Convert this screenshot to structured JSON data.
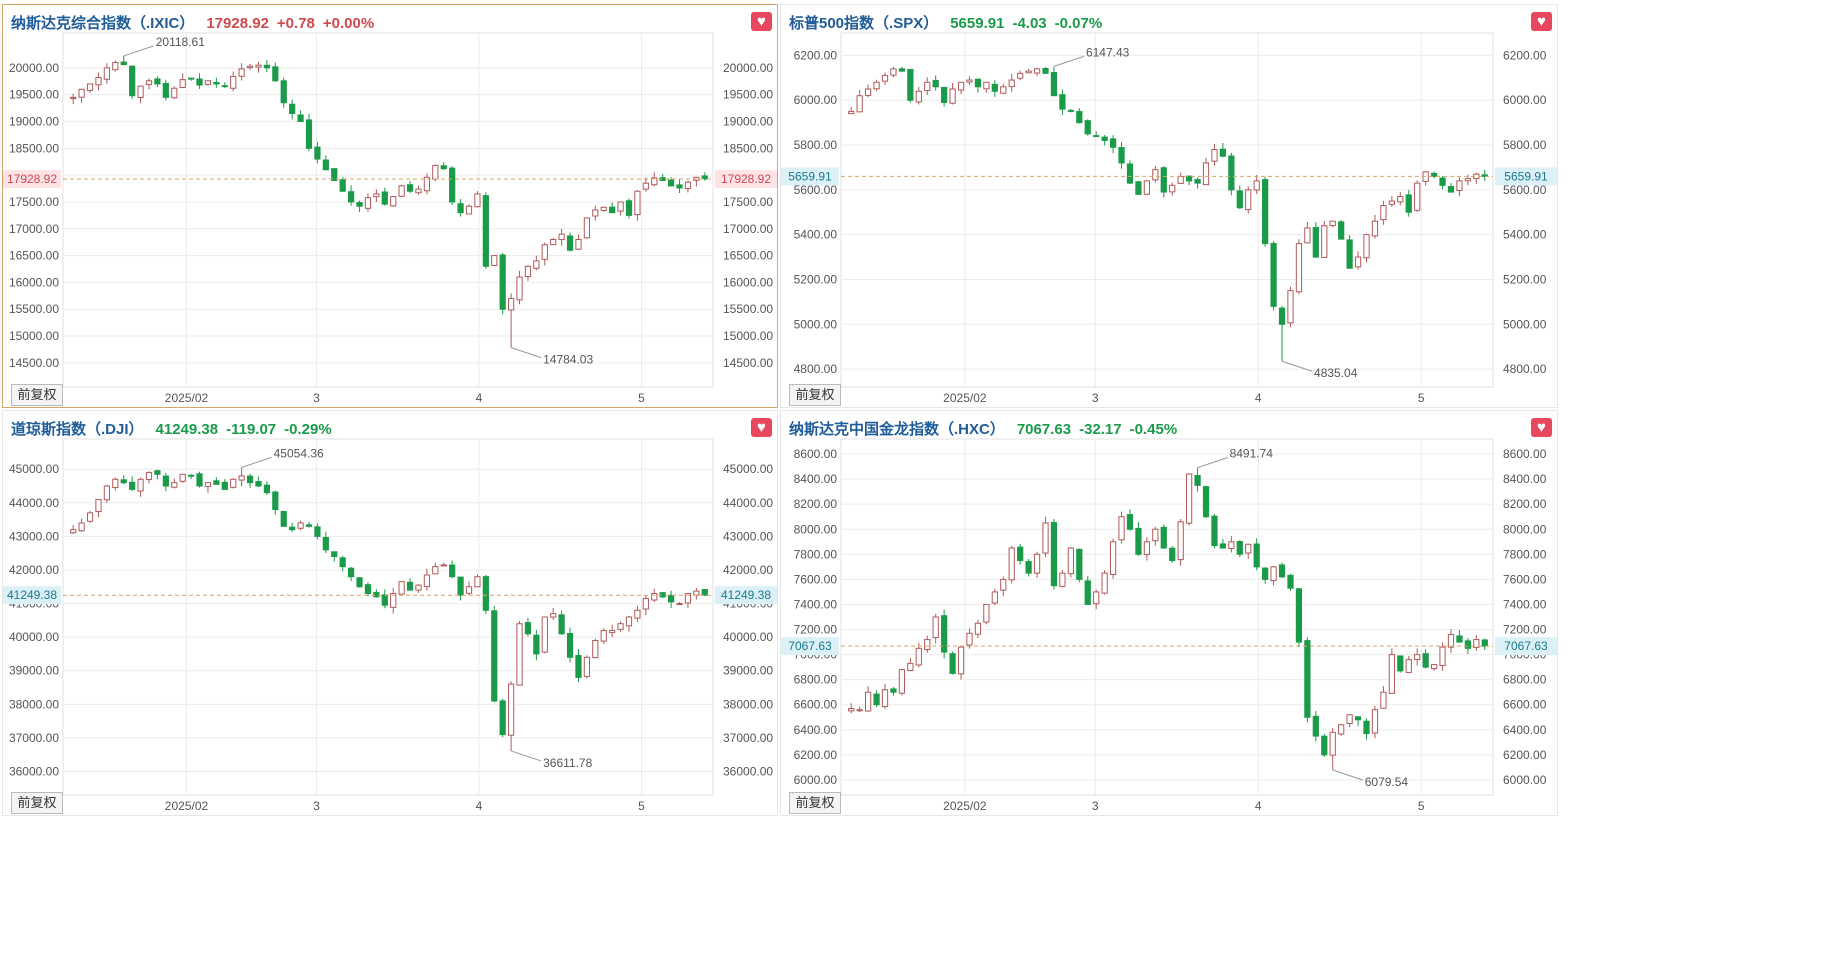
{
  "adjust_label": "前复权",
  "colors": {
    "up": "#d0494e",
    "down": "#1a9b49",
    "up_candle_border": "#b05a5a",
    "grid": "#ececec",
    "lastline": "#d9a46a"
  },
  "icons": {
    "favorite": "heart-icon"
  },
  "panels": [
    {
      "title": "纳斯达克综合指数（.IXIC）",
      "last": "17928.92",
      "change": "+0.78",
      "pct": "+0.00%",
      "direction": "up",
      "chart_data": {
        "type": "candlestick",
        "x_ticks": [
          "2025/02",
          "3",
          "4",
          "5"
        ],
        "y_ticks": [
          "20000.00",
          "19500.00",
          "19000.00",
          "18500.00",
          "18000.00",
          "17500.00",
          "17000.00",
          "16500.00",
          "16000.00",
          "15500.00",
          "15000.00",
          "14500.00"
        ],
        "last_label": "17928.92",
        "ylim": [
          14050,
          20650
        ],
        "high_label": "20118.61",
        "low_label": "14784.03",
        "closes": [
          19450,
          19600,
          19700,
          19820,
          20000,
          20100,
          20060,
          19480,
          19660,
          19760,
          19700,
          19450,
          19620,
          19780,
          19800,
          19680,
          19760,
          19700,
          19650,
          19840,
          19980,
          20030,
          20050,
          20000,
          19760,
          19350,
          19150,
          19000,
          18500,
          18300,
          18100,
          17900,
          17700,
          17500,
          17420,
          17580,
          17650,
          17460,
          17600,
          17800,
          17700,
          17740,
          17960,
          18180,
          18120,
          17500,
          17300,
          17420,
          17650,
          16300,
          16500,
          15500,
          15700,
          16100,
          16300,
          16400,
          16700,
          16800,
          16900,
          16600,
          16800,
          17200,
          17350,
          17400,
          17300,
          17500,
          17250,
          17700,
          17850,
          17950,
          17900,
          17800,
          17760,
          17870,
          17960,
          17928.92
        ]
      }
    },
    {
      "title": "标普500指数（.SPX）",
      "last": "5659.91",
      "change": "-4.03",
      "pct": "-0.07%",
      "direction": "down",
      "chart_data": {
        "type": "candlestick",
        "x_ticks": [
          "2025/02",
          "3",
          "4",
          "5"
        ],
        "y_ticks": [
          "6200.00",
          "6000.00",
          "5800.00",
          "5600.00",
          "5400.00",
          "5200.00",
          "5000.00",
          "4800.00"
        ],
        "last_label": "5659.91",
        "ylim": [
          4720,
          6300
        ],
        "high_label": "6147.43",
        "low_label": "4835.04",
        "closes": [
          5950,
          6020,
          6050,
          6080,
          6110,
          6140,
          6130,
          6000,
          6040,
          6080,
          6060,
          5990,
          6050,
          6080,
          6090,
          6060,
          6080,
          6040,
          6060,
          6090,
          6120,
          6130,
          6140,
          6120,
          6020,
          5960,
          5950,
          5900,
          5850,
          5840,
          5820,
          5790,
          5720,
          5630,
          5580,
          5640,
          5690,
          5590,
          5620,
          5660,
          5640,
          5630,
          5720,
          5780,
          5750,
          5600,
          5520,
          5600,
          5640,
          5360,
          5080,
          5000,
          5150,
          5360,
          5430,
          5300,
          5440,
          5460,
          5380,
          5250,
          5300,
          5400,
          5460,
          5530,
          5550,
          5570,
          5500,
          5630,
          5680,
          5660,
          5620,
          5590,
          5640,
          5650,
          5670,
          5659.91
        ]
      }
    },
    {
      "title": "道琼斯指数（.DJI）",
      "last": "41249.38",
      "change": "-119.07",
      "pct": "-0.29%",
      "direction": "down",
      "chart_data": {
        "type": "candlestick",
        "x_ticks": [
          "2025/02",
          "3",
          "4",
          "5"
        ],
        "y_ticks": [
          "45000.00",
          "44000.00",
          "43000.00",
          "42000.00",
          "41000.00",
          "40000.00",
          "39000.00",
          "38000.00",
          "37000.00",
          "36000.00"
        ],
        "last_label": "41249.38",
        "ylim": [
          35300,
          45900
        ],
        "high_label": "45054.36",
        "low_label": "36611.78",
        "closes": [
          43200,
          43400,
          43700,
          44100,
          44500,
          44700,
          44600,
          44400,
          44700,
          44900,
          44850,
          44500,
          44600,
          44850,
          44800,
          44500,
          44600,
          44550,
          44400,
          44700,
          44800,
          44600,
          44500,
          44300,
          43800,
          43300,
          43200,
          43400,
          43300,
          43000,
          42600,
          42400,
          42100,
          41800,
          41500,
          41300,
          41200,
          40950,
          41300,
          41650,
          41400,
          41550,
          41850,
          42100,
          42150,
          41800,
          41250,
          41500,
          41800,
          40800,
          38100,
          37100,
          38600,
          40400,
          40100,
          39500,
          40600,
          40700,
          40100,
          39400,
          38800,
          39400,
          39900,
          40200,
          40200,
          40400,
          40600,
          40800,
          41150,
          41300,
          41200,
          41050,
          41000,
          41300,
          41370,
          41249.38
        ]
      }
    },
    {
      "title": "纳斯达克中国金龙指数（.HXC）",
      "last": "7067.63",
      "change": "-32.17",
      "pct": "-0.45%",
      "direction": "down",
      "chart_data": {
        "type": "candlestick",
        "x_ticks": [
          "2025/02",
          "3",
          "4",
          "5"
        ],
        "y_ticks": [
          "8600.00",
          "8400.00",
          "8200.00",
          "8000.00",
          "7800.00",
          "7600.00",
          "7400.00",
          "7200.00",
          "7000.00",
          "6800.00",
          "6600.00",
          "6400.00",
          "6200.00",
          "6000.00"
        ],
        "last_label": "7067.63",
        "ylim": [
          5880,
          8720
        ],
        "high_label": "8491.74",
        "low_label": "6079.54",
        "closes": [
          6570,
          6560,
          6700,
          6600,
          6720,
          6700,
          6880,
          6930,
          7050,
          7120,
          7300,
          7020,
          6850,
          7060,
          7170,
          7250,
          7400,
          7500,
          7600,
          7850,
          7750,
          7650,
          7800,
          8050,
          7550,
          7650,
          7850,
          7600,
          7400,
          7500,
          7650,
          7900,
          8100,
          8000,
          7800,
          7900,
          8000,
          7850,
          7750,
          8060,
          8440,
          8350,
          8100,
          7870,
          7850,
          7900,
          7800,
          7880,
          7700,
          7600,
          7700,
          7620,
          7530,
          7100,
          6500,
          6350,
          6200,
          6380,
          6440,
          6520,
          6480,
          6370,
          6560,
          6700,
          7000,
          6870,
          6960,
          7000,
          6900,
          6920,
          7060,
          7160,
          7100,
          7050,
          7120,
          7067.63
        ]
      }
    }
  ]
}
